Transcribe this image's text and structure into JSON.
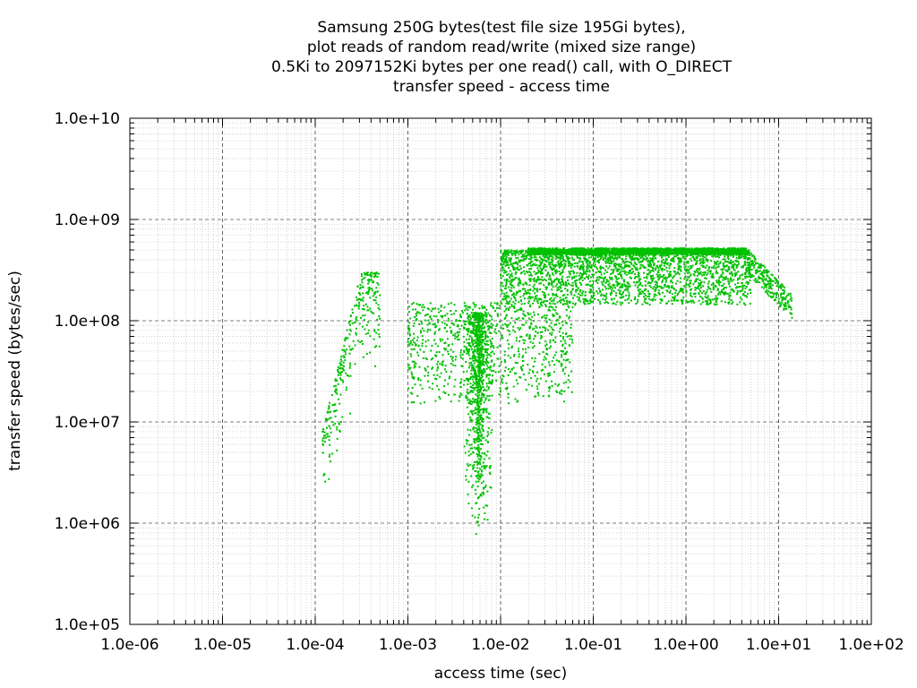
{
  "chart_data": {
    "type": "scatter",
    "title_lines": [
      "Samsung 250G bytes(test file size 195Gi bytes),",
      "plot reads of random read/write (mixed size range)",
      "0.5Ki to 2097152Ki bytes per one read() call, with O_DIRECT",
      "transfer speed - access time"
    ],
    "xlabel": "access time (sec)",
    "ylabel": "transfer speed (bytes/sec)",
    "xscale": "log",
    "yscale": "log",
    "xlim": [
      1e-06,
      100
    ],
    "ylim": [
      100000,
      10000000000
    ],
    "x_ticks": [
      "1.0e-06",
      "1.0e-05",
      "1.0e-04",
      "1.0e-03",
      "1.0e-02",
      "1.0e-01",
      "1.0e+00",
      "1.0e+01",
      "1.0e+02"
    ],
    "y_ticks": [
      "1.0e+05",
      "1.0e+06",
      "1.0e+07",
      "1.0e+08",
      "1.0e+09",
      "1.0e+10"
    ],
    "grid": true,
    "legend": "none",
    "point_color": "#00c000",
    "clusters": [
      {
        "desc": "ramp-up arc",
        "x": [
          0.00012,
          0.0005
        ],
        "y": [
          8000000,
          300000000
        ],
        "n": 320
      },
      {
        "desc": "dense scatter near 6ms",
        "x": [
          0.003,
          0.01
        ],
        "y": [
          700000,
          120000000
        ],
        "n": 900
      },
      {
        "desc": "mid cloud",
        "x": [
          0.001,
          0.06
        ],
        "y": [
          15000000,
          150000000
        ],
        "n": 900
      },
      {
        "desc": "upper band",
        "x": [
          0.01,
          5
        ],
        "y": [
          150000000,
          520000000
        ],
        "n": 2600
      },
      {
        "desc": "plateau top",
        "x": [
          0.02,
          4.5
        ],
        "y": [
          450000000,
          520000000
        ],
        "n": 1800
      },
      {
        "desc": "tail",
        "x": [
          4.5,
          14
        ],
        "y": [
          140000000,
          520000000
        ],
        "n": 250
      }
    ]
  }
}
